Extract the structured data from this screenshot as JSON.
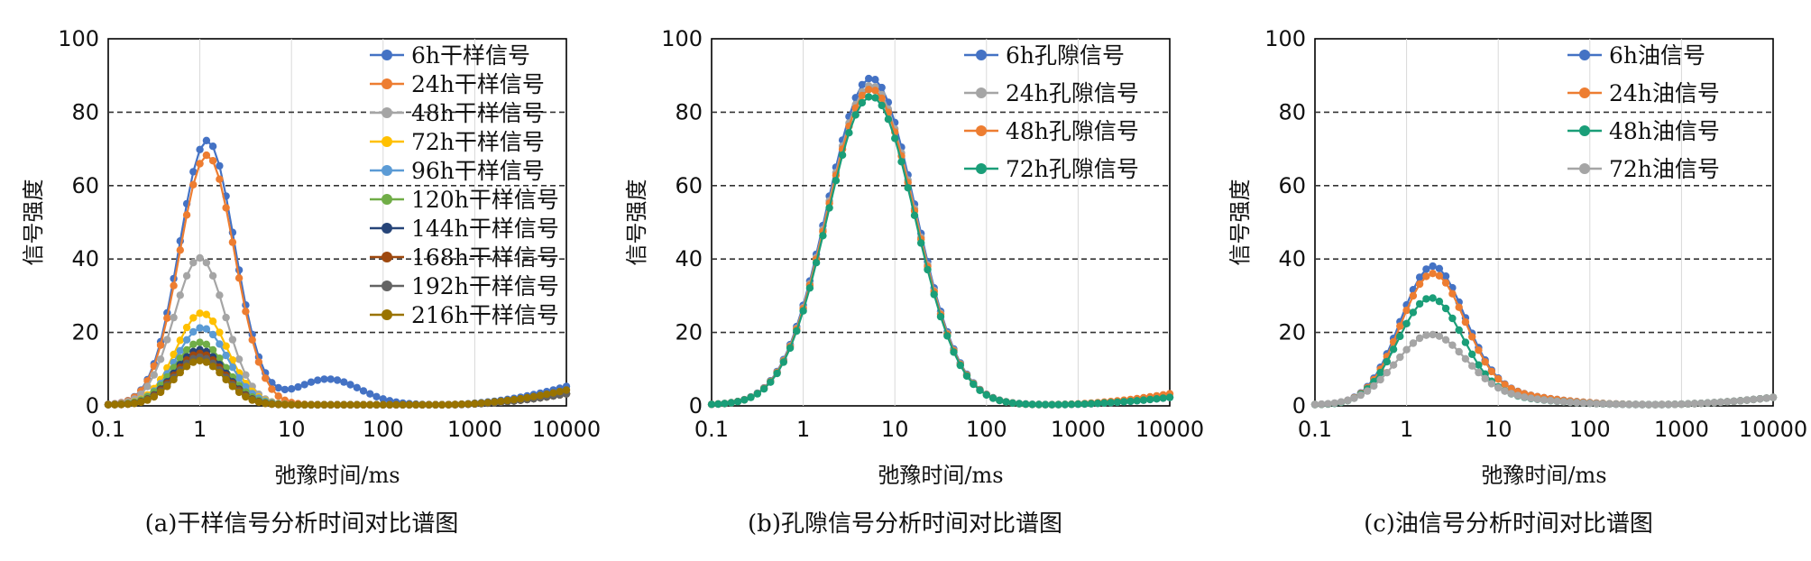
{
  "figure": {
    "captions": [
      "(a)干样信号分析时间对比谱图",
      "(b)孔隙信号分析时间对比谱图",
      "(c)油信号分析时间对比谱图"
    ]
  },
  "chart_data": [
    {
      "type": "line",
      "title": "",
      "caption": "(a)干样信号分析时间对比谱图",
      "xlabel": "弛豫时间/ms",
      "ylabel": "信号强度",
      "xscale": "log",
      "xlim": [
        0.1,
        10000
      ],
      "ylim": [
        0,
        100
      ],
      "xticks": [
        "0.1",
        "1",
        "10",
        "100",
        "1000",
        "10000"
      ],
      "yticks": [
        "0",
        "20",
        "40",
        "60",
        "80",
        "100"
      ],
      "grid": "horizontal dashed at 20, 40, 60, 80",
      "legend_position": "top-right",
      "series": [
        {
          "name": "6h干样信号",
          "color": "#4472C4",
          "peak_t": 1.2,
          "peak": 72,
          "width": 0.3,
          "shoulder": [
            25,
            0.35,
            7
          ],
          "tail_end": 5
        },
        {
          "name": "24h干样信号",
          "color": "#ED7D31",
          "peak_t": 1.2,
          "peak": 68,
          "width": 0.3,
          "tail_end": 3
        },
        {
          "name": "48h干样信号",
          "color": "#A5A5A5",
          "peak_t": 1.0,
          "peak": 40,
          "width": 0.28,
          "tail_end": 3
        },
        {
          "name": "72h干样信号",
          "color": "#FFC000",
          "peak_t": 1.05,
          "peak": 25,
          "width": 0.28,
          "tail_end": 3
        },
        {
          "name": "96h干样信号",
          "color": "#5B9BD5",
          "peak_t": 1.05,
          "peak": 21,
          "width": 0.28,
          "tail_end": 3
        },
        {
          "name": "120h干样信号",
          "color": "#70AD47",
          "peak_t": 1.0,
          "peak": 17,
          "width": 0.28,
          "tail_end": 3
        },
        {
          "name": "144h干样信号",
          "color": "#264478",
          "peak_t": 1.0,
          "peak": 15,
          "width": 0.27,
          "tail_end": 3
        },
        {
          "name": "168h干样信号",
          "color": "#9E480E",
          "peak_t": 1.0,
          "peak": 14,
          "width": 0.27,
          "tail_end": 3
        },
        {
          "name": "192h干样信号",
          "color": "#636363",
          "peak_t": 1.0,
          "peak": 13,
          "width": 0.27,
          "tail_end": 3
        },
        {
          "name": "216h干样信号",
          "color": "#997300",
          "peak_t": 1.0,
          "peak": 12,
          "width": 0.27,
          "tail_end": 4
        }
      ]
    },
    {
      "type": "line",
      "title": "",
      "caption": "(b)孔隙信号分析时间对比谱图",
      "xlabel": "弛豫时间/ms",
      "ylabel": "信号强度",
      "xscale": "log",
      "xlim": [
        0.1,
        10000
      ],
      "ylim": [
        0,
        100
      ],
      "xticks": [
        "0.1",
        "1",
        "10",
        "100",
        "1000",
        "10000"
      ],
      "yticks": [
        "0",
        "20",
        "40",
        "60",
        "80",
        "100"
      ],
      "grid": "horizontal dashed at 20, 40, 60, 80",
      "legend_position": "top-right",
      "series": [
        {
          "name": "6h孔隙信号",
          "color": "#4472C4",
          "peak_t": 5.5,
          "peak": 89,
          "width": 0.48,
          "tail_end": 2
        },
        {
          "name": "24h孔隙信号",
          "color": "#A5A5A5",
          "peak_t": 5.5,
          "peak": 87,
          "width": 0.48,
          "tail_end": 2
        },
        {
          "name": "48h孔隙信号",
          "color": "#ED7D31",
          "peak_t": 5.5,
          "peak": 86,
          "width": 0.48,
          "tail_end": 3
        },
        {
          "name": "72h孔隙信号",
          "color": "#1A9E78",
          "peak_t": 5.5,
          "peak": 84,
          "width": 0.48,
          "tail_end": 2
        }
      ]
    },
    {
      "type": "line",
      "title": "",
      "caption": "(c)油信号分析时间对比谱图",
      "xlabel": "弛豫时间/ms",
      "ylabel": "信号强度",
      "xscale": "log",
      "xlim": [
        0.1,
        10000
      ],
      "ylim": [
        0,
        100
      ],
      "xticks": [
        "0.1",
        "1",
        "10",
        "100",
        "1000",
        "10000"
      ],
      "yticks": [
        "0",
        "20",
        "40",
        "60",
        "80",
        "100"
      ],
      "grid": "horizontal dashed at 20, 40, 60, 80",
      "legend_position": "top-right",
      "series": [
        {
          "name": "6h油信号",
          "color": "#4472C4",
          "peak_t": 1.9,
          "peak": 36,
          "width": 0.35,
          "shoulder": [
            8,
            0.6,
            3
          ],
          "tail_end": 2
        },
        {
          "name": "24h油信号",
          "color": "#ED7D31",
          "peak_t": 1.9,
          "peak": 34,
          "width": 0.35,
          "shoulder": [
            8,
            0.6,
            3
          ],
          "tail_end": 2
        },
        {
          "name": "48h油信号",
          "color": "#1A9E78",
          "peak_t": 1.8,
          "peak": 28,
          "width": 0.35,
          "shoulder": [
            8,
            0.6,
            2
          ],
          "tail_end": 2
        },
        {
          "name": "72h油信号",
          "color": "#A5A5A5",
          "peak_t": 1.8,
          "peak": 18,
          "width": 0.38,
          "shoulder": [
            8,
            0.6,
            2
          ],
          "tail_end": 2
        }
      ]
    }
  ]
}
